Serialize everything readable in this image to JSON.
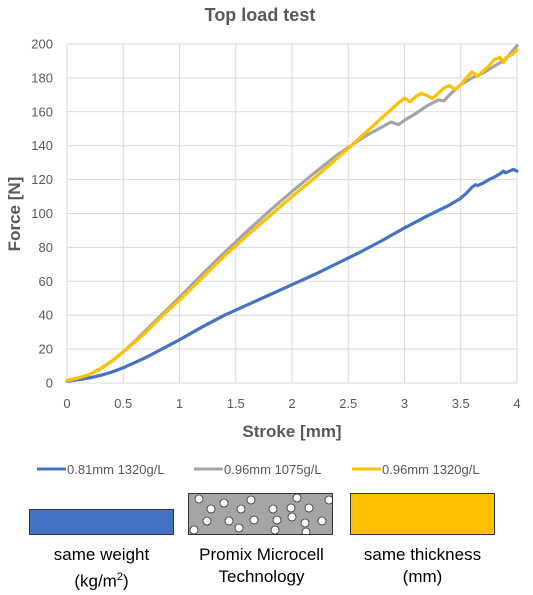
{
  "chart_data": {
    "type": "line",
    "title": "Top load test",
    "xlabel": "Stroke [mm]",
    "ylabel": "Force [N]",
    "xlim": [
      0,
      4
    ],
    "ylim": [
      0,
      200
    ],
    "x_ticks": [
      "0",
      "0.5",
      "1",
      "1.5",
      "2",
      "2.5",
      "3",
      "3.5",
      "4"
    ],
    "y_ticks": [
      "0",
      "20",
      "40",
      "60",
      "80",
      "100",
      "120",
      "140",
      "160",
      "180",
      "200"
    ],
    "grid": true,
    "legend_position": "bottom",
    "series": [
      {
        "name": "0.81mm 1320g/L",
        "color": "#4472C4",
        "points": [
          [
            0,
            1
          ],
          [
            0.1,
            2
          ],
          [
            0.2,
            3
          ],
          [
            0.3,
            4.5
          ],
          [
            0.4,
            6.5
          ],
          [
            0.5,
            9
          ],
          [
            0.6,
            12
          ],
          [
            0.7,
            15
          ],
          [
            0.8,
            18.5
          ],
          [
            0.9,
            22
          ],
          [
            1,
            25.5
          ],
          [
            1.2,
            33
          ],
          [
            1.4,
            40
          ],
          [
            1.6,
            46
          ],
          [
            1.8,
            52
          ],
          [
            2,
            58
          ],
          [
            2.2,
            64
          ],
          [
            2.4,
            70.5
          ],
          [
            2.6,
            77
          ],
          [
            2.8,
            84
          ],
          [
            3,
            91.5
          ],
          [
            3.2,
            98.5
          ],
          [
            3.4,
            105
          ],
          [
            3.5,
            109
          ],
          [
            3.55,
            112
          ],
          [
            3.6,
            115.5
          ],
          [
            3.63,
            117
          ],
          [
            3.65,
            116.5
          ],
          [
            3.7,
            118
          ],
          [
            3.75,
            120
          ],
          [
            3.8,
            121.5
          ],
          [
            3.85,
            123.5
          ],
          [
            3.88,
            125
          ],
          [
            3.9,
            124
          ],
          [
            3.95,
            125.5
          ],
          [
            3.97,
            126
          ],
          [
            4,
            125
          ]
        ]
      },
      {
        "name": "0.96mm 1075g/L",
        "color": "#A5A5A5",
        "points": [
          [
            0,
            1
          ],
          [
            0.1,
            3
          ],
          [
            0.2,
            5
          ],
          [
            0.3,
            8.5
          ],
          [
            0.4,
            13
          ],
          [
            0.5,
            18.5
          ],
          [
            0.6,
            24.5
          ],
          [
            0.7,
            31
          ],
          [
            0.8,
            37.5
          ],
          [
            0.9,
            44
          ],
          [
            1,
            50.5
          ],
          [
            1.2,
            64
          ],
          [
            1.4,
            77
          ],
          [
            1.6,
            89.5
          ],
          [
            1.8,
            101.5
          ],
          [
            2,
            113
          ],
          [
            2.2,
            124
          ],
          [
            2.4,
            134.5
          ],
          [
            2.5,
            139
          ],
          [
            2.6,
            143.5
          ],
          [
            2.7,
            147.5
          ],
          [
            2.8,
            151
          ],
          [
            2.88,
            154
          ],
          [
            2.92,
            153
          ],
          [
            2.95,
            152.5
          ],
          [
            3,
            155
          ],
          [
            3.1,
            159
          ],
          [
            3.2,
            163.5
          ],
          [
            3.3,
            167
          ],
          [
            3.35,
            166.5
          ],
          [
            3.4,
            170
          ],
          [
            3.5,
            176
          ],
          [
            3.6,
            180
          ],
          [
            3.7,
            183
          ],
          [
            3.8,
            187
          ],
          [
            3.9,
            191
          ],
          [
            4,
            199
          ]
        ]
      },
      {
        "name": "0.96mm 1320g/L",
        "color": "#FFC000",
        "points": [
          [
            0,
            1.5
          ],
          [
            0.1,
            3
          ],
          [
            0.2,
            5
          ],
          [
            0.3,
            8.5
          ],
          [
            0.4,
            13
          ],
          [
            0.5,
            18.5
          ],
          [
            0.6,
            24
          ],
          [
            0.7,
            30
          ],
          [
            0.8,
            36.5
          ],
          [
            0.9,
            43
          ],
          [
            1,
            49
          ],
          [
            1.2,
            62
          ],
          [
            1.4,
            75
          ],
          [
            1.6,
            87
          ],
          [
            1.8,
            98.5
          ],
          [
            2,
            110
          ],
          [
            2.2,
            121
          ],
          [
            2.4,
            132.5
          ],
          [
            2.5,
            138.5
          ],
          [
            2.6,
            144.5
          ],
          [
            2.7,
            150.5
          ],
          [
            2.8,
            156.5
          ],
          [
            2.9,
            162.5
          ],
          [
            2.95,
            165.5
          ],
          [
            3,
            168
          ],
          [
            3.05,
            166
          ],
          [
            3.1,
            169
          ],
          [
            3.15,
            171
          ],
          [
            3.2,
            169.5
          ],
          [
            3.25,
            168
          ],
          [
            3.3,
            171
          ],
          [
            3.35,
            174
          ],
          [
            3.4,
            175.5
          ],
          [
            3.45,
            173
          ],
          [
            3.5,
            176
          ],
          [
            3.55,
            180
          ],
          [
            3.6,
            183.5
          ],
          [
            3.65,
            181
          ],
          [
            3.7,
            184
          ],
          [
            3.75,
            187
          ],
          [
            3.8,
            191
          ],
          [
            3.85,
            192
          ],
          [
            3.88,
            189
          ],
          [
            3.9,
            192
          ],
          [
            3.95,
            193.5
          ],
          [
            4,
            196.5
          ]
        ]
      }
    ]
  },
  "legend": [
    {
      "label": "0.81mm 1320g/L",
      "color": "#4472C4"
    },
    {
      "label": "0.96mm 1075g/L",
      "color": "#A5A5A5"
    },
    {
      "label": "0.96mm 1320g/L",
      "color": "#FFC000"
    }
  ],
  "swatches": [
    {
      "caption_line1": "same weight",
      "caption_line2_prefix": "(kg/m",
      "caption_line2_sup": "2",
      "caption_line2_suffix": ")",
      "color": "#4472C4"
    },
    {
      "caption_line1": "Promix Microcell",
      "caption_line2": "Technology",
      "color": "#A5A5A5",
      "pattern": "bubbles"
    },
    {
      "caption_line1": "same thickness",
      "caption_line2": "(mm)",
      "color": "#FFC000"
    }
  ]
}
